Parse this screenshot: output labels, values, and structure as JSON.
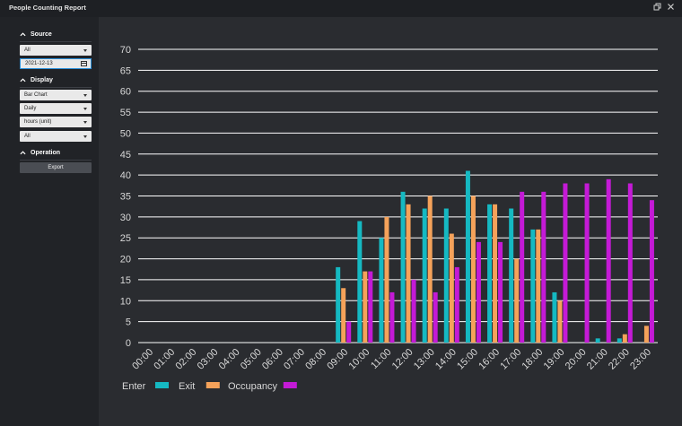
{
  "window": {
    "title": "People Counting Report"
  },
  "sidebar": {
    "source": {
      "heading": "Source",
      "device_select": "All",
      "date_value": "2021-12-13"
    },
    "display": {
      "heading": "Display",
      "chart_type_select": "Bar Chart",
      "period_select": "Daily",
      "unit_select": "hours (unit)",
      "filter_select": "All"
    },
    "operation": {
      "heading": "Operation",
      "export_label": "Export"
    }
  },
  "colors": {
    "enter": "#15b9c2",
    "exit": "#f5a25a",
    "occupancy": "#c41ad6"
  },
  "chart_data": {
    "type": "bar",
    "categories": [
      "00:00",
      "01:00",
      "02:00",
      "03:00",
      "04:00",
      "05:00",
      "06:00",
      "07:00",
      "08:00",
      "09:00",
      "10:00",
      "11:00",
      "12:00",
      "13:00",
      "14:00",
      "15:00",
      "16:00",
      "17:00",
      "18:00",
      "19:00",
      "20:00",
      "21:00",
      "22:00",
      "23:00"
    ],
    "series": [
      {
        "name": "Enter",
        "values": [
          0,
          0,
          0,
          0,
          0,
          0,
          0,
          0,
          0,
          18,
          29,
          25,
          36,
          32,
          32,
          41,
          33,
          32,
          27,
          12,
          0,
          1,
          1,
          0
        ]
      },
      {
        "name": "Exit",
        "values": [
          0,
          0,
          0,
          0,
          0,
          0,
          0,
          0,
          0,
          13,
          17,
          30,
          33,
          35,
          26,
          35,
          33,
          20,
          27,
          10,
          0,
          0,
          2,
          4
        ]
      },
      {
        "name": "Occupancy",
        "values": [
          0,
          0,
          0,
          0,
          0,
          0,
          0,
          0,
          0,
          5,
          17,
          12,
          15,
          12,
          18,
          24,
          24,
          36,
          36,
          38,
          38,
          39,
          38,
          34
        ]
      }
    ],
    "yticks": [
      "0",
      "5",
      "10",
      "15",
      "20",
      "25",
      "30",
      "35",
      "40",
      "45",
      "50",
      "55",
      "60",
      "65",
      "70"
    ],
    "ylim": [
      0,
      70
    ],
    "grid": true,
    "legend_position": "bottom-left"
  }
}
